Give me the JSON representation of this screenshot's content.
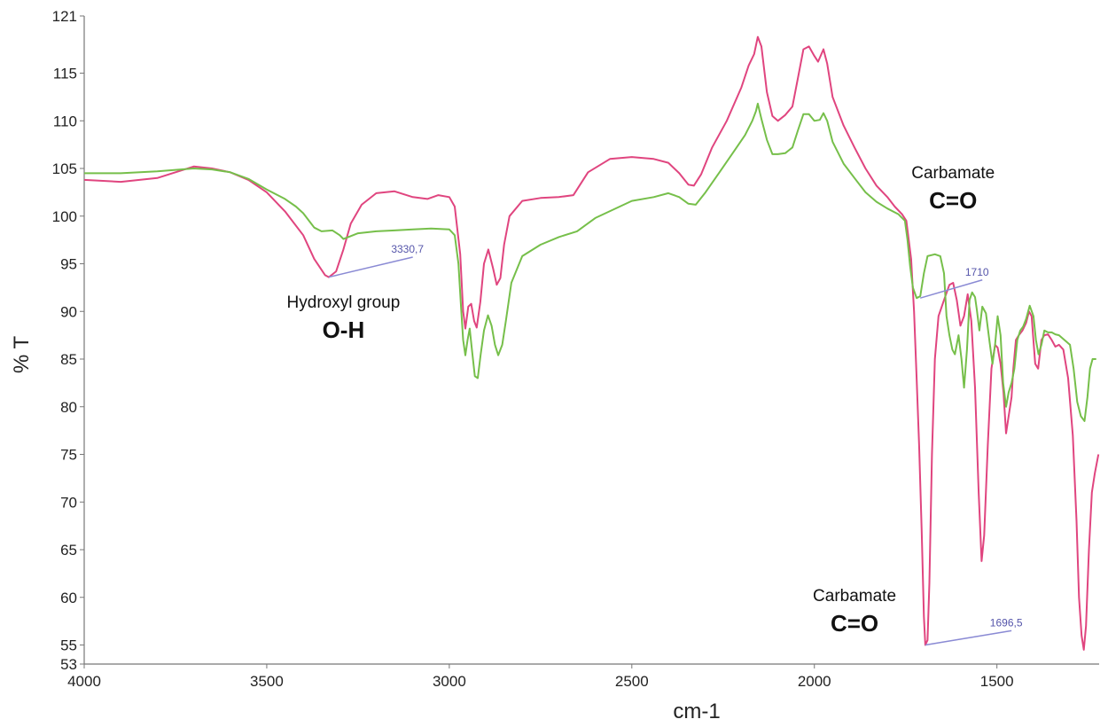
{
  "chart_data": {
    "type": "line",
    "xlabel": "cm-1",
    "ylabel": "% T",
    "xlim": [
      4000,
      1220
    ],
    "ylim": [
      53,
      121
    ],
    "xticks": [
      4000,
      3500,
      3000,
      2500,
      2000,
      1500
    ],
    "yticks": [
      121,
      115,
      110,
      105,
      100,
      95,
      90,
      85,
      80,
      75,
      70,
      65,
      60,
      55,
      53
    ],
    "grid": false,
    "colors": {
      "pink": "#e0457f",
      "green": "#76bf4a",
      "peak_line": "#8a8ad4"
    },
    "series": [
      {
        "color": "#e0457f",
        "points": [
          [
            4000,
            103.8
          ],
          [
            3900,
            103.6
          ],
          [
            3800,
            104.0
          ],
          [
            3700,
            105.2
          ],
          [
            3650,
            105.0
          ],
          [
            3600,
            104.6
          ],
          [
            3550,
            103.8
          ],
          [
            3500,
            102.5
          ],
          [
            3450,
            100.5
          ],
          [
            3400,
            98.0
          ],
          [
            3370,
            95.5
          ],
          [
            3340,
            93.8
          ],
          [
            3330,
            93.6
          ],
          [
            3310,
            94.2
          ],
          [
            3290,
            96.5
          ],
          [
            3270,
            99.2
          ],
          [
            3240,
            101.2
          ],
          [
            3200,
            102.4
          ],
          [
            3150,
            102.6
          ],
          [
            3100,
            102.0
          ],
          [
            3060,
            101.8
          ],
          [
            3030,
            102.2
          ],
          [
            3000,
            102.0
          ],
          [
            2985,
            101.0
          ],
          [
            2970,
            96.0
          ],
          [
            2962,
            90.0
          ],
          [
            2956,
            88.2
          ],
          [
            2948,
            90.5
          ],
          [
            2940,
            90.8
          ],
          [
            2932,
            89.0
          ],
          [
            2925,
            88.3
          ],
          [
            2915,
            91.0
          ],
          [
            2905,
            95.0
          ],
          [
            2893,
            96.5
          ],
          [
            2880,
            94.5
          ],
          [
            2870,
            92.8
          ],
          [
            2860,
            93.5
          ],
          [
            2850,
            97.0
          ],
          [
            2835,
            100.0
          ],
          [
            2800,
            101.6
          ],
          [
            2750,
            101.9
          ],
          [
            2700,
            102.0
          ],
          [
            2660,
            102.2
          ],
          [
            2620,
            104.6
          ],
          [
            2560,
            106.0
          ],
          [
            2500,
            106.2
          ],
          [
            2440,
            106.0
          ],
          [
            2400,
            105.6
          ],
          [
            2370,
            104.5
          ],
          [
            2345,
            103.3
          ],
          [
            2330,
            103.2
          ],
          [
            2310,
            104.4
          ],
          [
            2280,
            107.2
          ],
          [
            2240,
            110.0
          ],
          [
            2200,
            113.5
          ],
          [
            2180,
            115.8
          ],
          [
            2165,
            117.0
          ],
          [
            2155,
            118.8
          ],
          [
            2145,
            117.8
          ],
          [
            2130,
            113.0
          ],
          [
            2115,
            110.5
          ],
          [
            2100,
            110.0
          ],
          [
            2080,
            110.6
          ],
          [
            2060,
            111.5
          ],
          [
            2045,
            114.5
          ],
          [
            2030,
            117.5
          ],
          [
            2015,
            117.8
          ],
          [
            2000,
            116.8
          ],
          [
            1990,
            116.2
          ],
          [
            1975,
            117.5
          ],
          [
            1965,
            116.0
          ],
          [
            1950,
            112.5
          ],
          [
            1920,
            109.5
          ],
          [
            1890,
            107.2
          ],
          [
            1860,
            105.0
          ],
          [
            1830,
            103.2
          ],
          [
            1800,
            102.0
          ],
          [
            1780,
            101.0
          ],
          [
            1760,
            100.2
          ],
          [
            1748,
            99.5
          ],
          [
            1735,
            95.5
          ],
          [
            1727,
            90.0
          ],
          [
            1720,
            83.0
          ],
          [
            1713,
            76.0
          ],
          [
            1706,
            67.0
          ],
          [
            1700,
            58.0
          ],
          [
            1696,
            55.0
          ],
          [
            1690,
            55.5
          ],
          [
            1685,
            61.5
          ],
          [
            1678,
            75.0
          ],
          [
            1670,
            85.0
          ],
          [
            1660,
            89.5
          ],
          [
            1645,
            91.2
          ],
          [
            1630,
            92.8
          ],
          [
            1620,
            93.0
          ],
          [
            1610,
            91.2
          ],
          [
            1600,
            88.5
          ],
          [
            1590,
            89.5
          ],
          [
            1580,
            91.8
          ],
          [
            1570,
            89.0
          ],
          [
            1560,
            82.0
          ],
          [
            1550,
            71.0
          ],
          [
            1542,
            63.8
          ],
          [
            1535,
            66.5
          ],
          [
            1525,
            76.0
          ],
          [
            1515,
            84.0
          ],
          [
            1505,
            86.5
          ],
          [
            1498,
            86.2
          ],
          [
            1490,
            84.5
          ],
          [
            1482,
            81.5
          ],
          [
            1475,
            77.2
          ],
          [
            1468,
            79.0
          ],
          [
            1460,
            81.0
          ],
          [
            1455,
            84.0
          ],
          [
            1448,
            87.0
          ],
          [
            1440,
            87.5
          ],
          [
            1430,
            88.0
          ],
          [
            1420,
            88.8
          ],
          [
            1412,
            90.0
          ],
          [
            1405,
            89.5
          ],
          [
            1395,
            84.5
          ],
          [
            1387,
            84.0
          ],
          [
            1378,
            87.0
          ],
          [
            1370,
            87.5
          ],
          [
            1360,
            87.6
          ],
          [
            1350,
            87.0
          ],
          [
            1340,
            86.3
          ],
          [
            1330,
            86.5
          ],
          [
            1318,
            86.0
          ],
          [
            1305,
            83.0
          ],
          [
            1292,
            77.0
          ],
          [
            1282,
            68.0
          ],
          [
            1275,
            60.0
          ],
          [
            1268,
            56.0
          ],
          [
            1262,
            54.5
          ],
          [
            1256,
            57.0
          ],
          [
            1248,
            65.0
          ],
          [
            1240,
            71.0
          ],
          [
            1232,
            73.0
          ],
          [
            1222,
            75.0
          ]
        ]
      },
      {
        "color": "#76bf4a",
        "points": [
          [
            4000,
            104.5
          ],
          [
            3900,
            104.5
          ],
          [
            3800,
            104.7
          ],
          [
            3700,
            105.0
          ],
          [
            3650,
            104.9
          ],
          [
            3600,
            104.6
          ],
          [
            3550,
            103.9
          ],
          [
            3500,
            102.8
          ],
          [
            3450,
            101.8
          ],
          [
            3420,
            101.0
          ],
          [
            3400,
            100.3
          ],
          [
            3370,
            98.8
          ],
          [
            3350,
            98.4
          ],
          [
            3320,
            98.5
          ],
          [
            3300,
            98.0
          ],
          [
            3290,
            97.6
          ],
          [
            3270,
            97.9
          ],
          [
            3250,
            98.2
          ],
          [
            3200,
            98.4
          ],
          [
            3150,
            98.5
          ],
          [
            3100,
            98.6
          ],
          [
            3050,
            98.7
          ],
          [
            3000,
            98.6
          ],
          [
            2985,
            98.0
          ],
          [
            2975,
            95.0
          ],
          [
            2968,
            90.5
          ],
          [
            2962,
            87.0
          ],
          [
            2956,
            85.4
          ],
          [
            2950,
            87.0
          ],
          [
            2944,
            88.2
          ],
          [
            2938,
            86.0
          ],
          [
            2930,
            83.2
          ],
          [
            2922,
            83.0
          ],
          [
            2914,
            85.5
          ],
          [
            2905,
            88.0
          ],
          [
            2894,
            89.6
          ],
          [
            2884,
            88.5
          ],
          [
            2875,
            86.5
          ],
          [
            2866,
            85.4
          ],
          [
            2855,
            86.5
          ],
          [
            2845,
            89.0
          ],
          [
            2830,
            93.0
          ],
          [
            2800,
            95.8
          ],
          [
            2750,
            97.0
          ],
          [
            2700,
            97.8
          ],
          [
            2650,
            98.4
          ],
          [
            2600,
            99.8
          ],
          [
            2500,
            101.6
          ],
          [
            2440,
            102.0
          ],
          [
            2400,
            102.4
          ],
          [
            2370,
            102.0
          ],
          [
            2345,
            101.3
          ],
          [
            2325,
            101.2
          ],
          [
            2300,
            102.4
          ],
          [
            2260,
            104.6
          ],
          [
            2220,
            106.8
          ],
          [
            2190,
            108.5
          ],
          [
            2170,
            110.0
          ],
          [
            2160,
            111.0
          ],
          [
            2155,
            111.8
          ],
          [
            2145,
            110.2
          ],
          [
            2130,
            108.0
          ],
          [
            2115,
            106.5
          ],
          [
            2100,
            106.5
          ],
          [
            2080,
            106.6
          ],
          [
            2060,
            107.2
          ],
          [
            2045,
            109.0
          ],
          [
            2030,
            110.7
          ],
          [
            2015,
            110.7
          ],
          [
            2000,
            110.0
          ],
          [
            1985,
            110.1
          ],
          [
            1975,
            110.8
          ],
          [
            1965,
            110.0
          ],
          [
            1950,
            107.8
          ],
          [
            1920,
            105.5
          ],
          [
            1890,
            104.0
          ],
          [
            1860,
            102.5
          ],
          [
            1830,
            101.5
          ],
          [
            1800,
            100.8
          ],
          [
            1770,
            100.2
          ],
          [
            1752,
            99.5
          ],
          [
            1745,
            97.5
          ],
          [
            1738,
            94.8
          ],
          [
            1730,
            92.5
          ],
          [
            1720,
            91.4
          ],
          [
            1710,
            91.6
          ],
          [
            1700,
            94.0
          ],
          [
            1690,
            95.8
          ],
          [
            1670,
            96.0
          ],
          [
            1655,
            95.8
          ],
          [
            1645,
            94.0
          ],
          [
            1638,
            89.5
          ],
          [
            1630,
            87.5
          ],
          [
            1622,
            86.0
          ],
          [
            1615,
            85.5
          ],
          [
            1605,
            87.5
          ],
          [
            1597,
            85.0
          ],
          [
            1590,
            82.0
          ],
          [
            1582,
            86.0
          ],
          [
            1575,
            91.2
          ],
          [
            1568,
            92.0
          ],
          [
            1560,
            91.5
          ],
          [
            1555,
            90.2
          ],
          [
            1548,
            88.0
          ],
          [
            1540,
            90.5
          ],
          [
            1530,
            89.8
          ],
          [
            1520,
            86.8
          ],
          [
            1512,
            84.5
          ],
          [
            1505,
            86.5
          ],
          [
            1498,
            89.5
          ],
          [
            1490,
            87.5
          ],
          [
            1483,
            82.5
          ],
          [
            1475,
            80.0
          ],
          [
            1468,
            81.5
          ],
          [
            1460,
            82.5
          ],
          [
            1452,
            84.0
          ],
          [
            1444,
            87.0
          ],
          [
            1436,
            88.0
          ],
          [
            1428,
            88.4
          ],
          [
            1420,
            89.2
          ],
          [
            1410,
            90.6
          ],
          [
            1400,
            89.5
          ],
          [
            1393,
            87.0
          ],
          [
            1386,
            85.5
          ],
          [
            1378,
            86.5
          ],
          [
            1370,
            88.0
          ],
          [
            1360,
            87.8
          ],
          [
            1350,
            87.8
          ],
          [
            1340,
            87.6
          ],
          [
            1330,
            87.5
          ],
          [
            1315,
            87.0
          ],
          [
            1300,
            86.5
          ],
          [
            1290,
            84.0
          ],
          [
            1280,
            80.5
          ],
          [
            1270,
            79.0
          ],
          [
            1260,
            78.5
          ],
          [
            1252,
            81.0
          ],
          [
            1245,
            84.0
          ],
          [
            1238,
            85.0
          ],
          [
            1228,
            85.0
          ]
        ]
      }
    ],
    "annotations": [
      {
        "lines": [
          "Hydroxyl group",
          "O-H"
        ],
        "x": 3290,
        "y": 90.4
      },
      {
        "lines": [
          "Carbamate",
          "C=O"
        ],
        "x": 1620,
        "y": 104.0
      },
      {
        "lines": [
          "Carbamate",
          "C=O"
        ],
        "x": 1890,
        "y": 59.6
      }
    ],
    "peak_labels": [
      {
        "text": "3330,7",
        "peak": [
          3330,
          93.6
        ],
        "end": [
          3100,
          95.7
        ]
      },
      {
        "text": "1710",
        "peak": [
          1710,
          91.4
        ],
        "end": [
          1540,
          93.3
        ]
      },
      {
        "text": "1696,5",
        "peak": [
          1696,
          55.0
        ],
        "end": [
          1460,
          56.5
        ]
      }
    ]
  }
}
